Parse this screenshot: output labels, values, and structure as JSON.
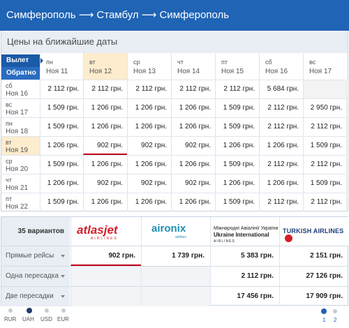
{
  "header": {
    "title": "Симферополь ⟶ Стамбул ⟶ Симферополь"
  },
  "subheader": {
    "title": "Цены на ближайшие даты"
  },
  "directions": {
    "outbound": "Вылет",
    "return": "Обратно"
  },
  "columns": [
    {
      "day": "пн",
      "date": "Ноя 11"
    },
    {
      "day": "вт",
      "date": "Ноя 12"
    },
    {
      "day": "ср",
      "date": "Ноя 13"
    },
    {
      "day": "чт",
      "date": "Ноя 14"
    },
    {
      "day": "пт",
      "date": "Ноя 15"
    },
    {
      "day": "сб",
      "date": "Ноя 16"
    },
    {
      "day": "вс",
      "date": "Ноя 17"
    }
  ],
  "rows": [
    {
      "day": "сб",
      "date": "Ноя 16",
      "prices": [
        "2 112 грн.",
        "2 112 грн.",
        "2 112 грн.",
        "2 112 грн.",
        "2 112 грн.",
        "5 684 грн.",
        ""
      ]
    },
    {
      "day": "вс",
      "date": "Ноя 17",
      "prices": [
        "1 509 грн.",
        "1 206 грн.",
        "1 206 грн.",
        "1 206 грн.",
        "1 509 грн.",
        "2 112 грн.",
        "2 950 грн."
      ]
    },
    {
      "day": "пн",
      "date": "Ноя 18",
      "prices": [
        "1 509 грн.",
        "1 206 грн.",
        "1 206 грн.",
        "1 206 грн.",
        "1 509 грн.",
        "2 112 грн.",
        "2 112 грн."
      ]
    },
    {
      "day": "вт",
      "date": "Ноя 19",
      "prices": [
        "1 206 грн.",
        "902 грн.",
        "902 грн.",
        "902 грн.",
        "1 206 грн.",
        "1 206 грн.",
        "1 509 грн."
      ]
    },
    {
      "day": "ср",
      "date": "Ноя 20",
      "prices": [
        "1 509 грн.",
        "1 206 грн.",
        "1 206 грн.",
        "1 206 грн.",
        "1 509 грн.",
        "2 112 грн.",
        "2 112 грн."
      ]
    },
    {
      "day": "чт",
      "date": "Ноя 21",
      "prices": [
        "1 206 грн.",
        "902 грн.",
        "902 грн.",
        "902 грн.",
        "1 206 грн.",
        "1 206 грн.",
        "1 509 грн."
      ]
    },
    {
      "day": "пт",
      "date": "Ноя 22",
      "prices": [
        "1 509 грн.",
        "1 206 грн.",
        "1 206 грн.",
        "1 206 грн.",
        "1 509 грн.",
        "2 112 грн.",
        "2 112 грн."
      ]
    }
  ],
  "airlines": {
    "count_label": "35 вариантов",
    "logos": {
      "atlasjet": "atlasjet",
      "atlasjet_sub": "AIRLINES",
      "aironix": "aironix",
      "aironix_sub": "airlines",
      "uia_line1": "Міжнародні Авіалінії України",
      "uia_line2": "Ukraine International",
      "uia_line3": "AIRLINES",
      "turkish": "TURKISH AIRLINES"
    },
    "rows": [
      {
        "label": "Прямые рейсы",
        "prices": [
          "902 грн.",
          "1 739 грн.",
          "5 383 грн.",
          "2 151 грн."
        ]
      },
      {
        "label": "Одна пересадка",
        "prices": [
          "",
          "",
          "2 112 грн.",
          "27 126 грн."
        ]
      },
      {
        "label": "Две пересадки",
        "prices": [
          "",
          "",
          "17 456 грн.",
          "17 909 грн."
        ]
      }
    ]
  },
  "currency": {
    "options": [
      "RUR",
      "UAH",
      "USD",
      "EUR"
    ],
    "selected": "UAH"
  },
  "pager": {
    "pages": [
      "1",
      "2"
    ],
    "current": "1"
  },
  "colors": {
    "brand": "#1f64b5",
    "highlight": "#fdeccd",
    "selected_underline": "#c0001a"
  }
}
